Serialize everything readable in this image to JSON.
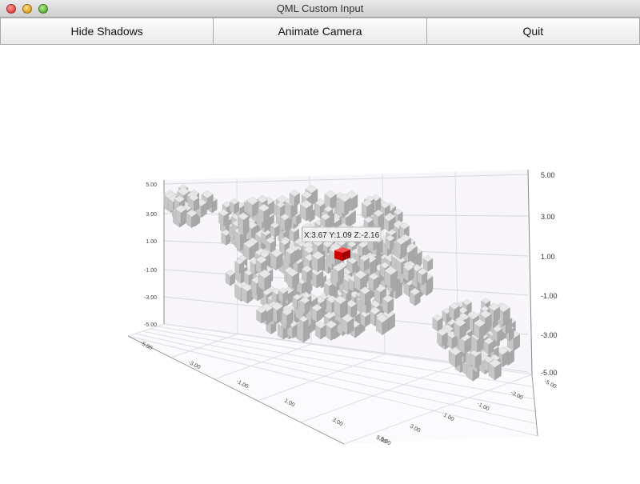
{
  "window": {
    "title": "QML Custom Input"
  },
  "toolbar": {
    "buttons": [
      {
        "label": "Hide Shadows"
      },
      {
        "label": "Animate Camera"
      },
      {
        "label": "Quit"
      }
    ]
  },
  "graph": {
    "selection_label": "X:3.67 Y:1.09 Z:-2.16",
    "selection_color": "#e01010",
    "item_color": "#b8b8b8",
    "y_axis_left_ticks": [
      "5.00",
      "3.00",
      "1.00",
      "-1.00",
      "-3.00",
      "-5.00"
    ],
    "y_axis_right_ticks": [
      "5.00",
      "3.00",
      "1.00",
      "-1.00",
      "-3.00",
      "-5.00"
    ],
    "floor_ticks_front": [
      "-5.00",
      "-3.00",
      "-1.00",
      "1.00",
      "3.00",
      "5.00"
    ],
    "floor_ticks_side": [
      "5.00",
      "3.00",
      "1.00",
      "-1.00",
      "-3.00",
      "-5.00"
    ]
  }
}
